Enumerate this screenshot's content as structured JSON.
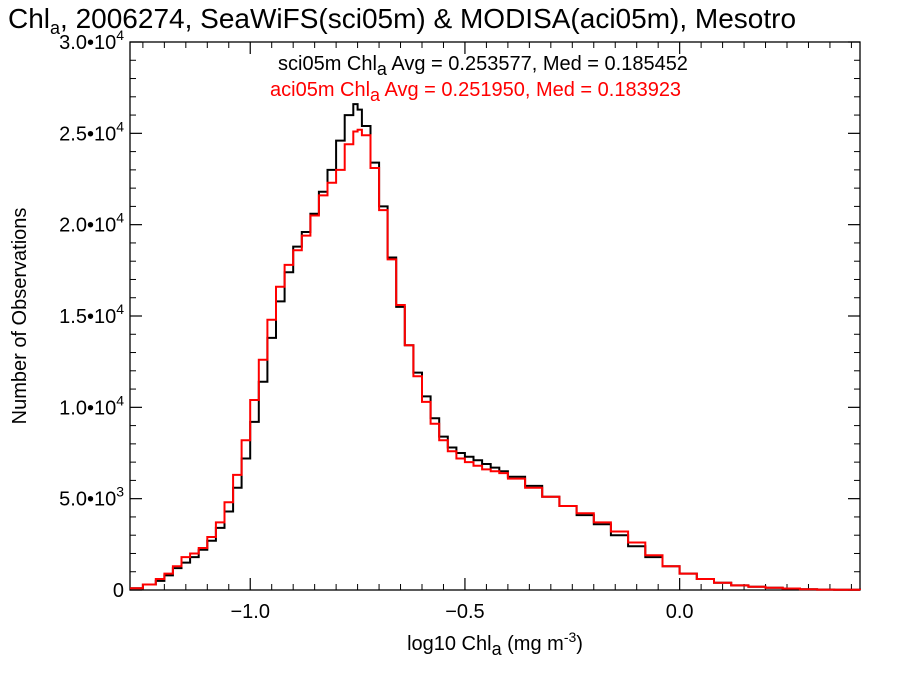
{
  "chart_data": {
    "type": "line",
    "step": true,
    "title": {
      "pre": "Chl",
      "sub": "a",
      "post": ", 2006274, SeaWiFS(sci05m) & MODISA(aci05m), Mesotro"
    },
    "xlabel": {
      "pre": "log10 Chl",
      "sub": "a",
      "mid": " (mg m",
      "sup": "-3",
      "post": ")"
    },
    "ylabel": "Number of Observations",
    "xlim": [
      -1.28,
      0.42
    ],
    "ylim": [
      0,
      30000
    ],
    "x_ticks": [
      {
        "value": -1.0,
        "label": "−1.0"
      },
      {
        "value": -0.5,
        "label": "−0.5"
      },
      {
        "value": 0.0,
        "label": "0.0"
      }
    ],
    "y_ticks": [
      {
        "value": 0,
        "label": "0",
        "exp": ""
      },
      {
        "value": 5000,
        "label": "5.0•10",
        "exp": "3"
      },
      {
        "value": 10000,
        "label": "1.0•10",
        "exp": "4"
      },
      {
        "value": 15000,
        "label": "1.5•10",
        "exp": "4"
      },
      {
        "value": 20000,
        "label": "2.0•10",
        "exp": "4"
      },
      {
        "value": 25000,
        "label": "2.5•10",
        "exp": "4"
      },
      {
        "value": 30000,
        "label": "3.0•10",
        "exp": "4"
      }
    ],
    "series": [
      {
        "name": "sci05m",
        "color": "#000000",
        "stat": {
          "pre": "sci05m Chl",
          "sub": "a",
          "post": " Avg = 0.253577, Med = 0.185452"
        },
        "x": [
          -1.28,
          -1.25,
          -1.22,
          -1.2,
          -1.18,
          -1.16,
          -1.14,
          -1.12,
          -1.1,
          -1.08,
          -1.06,
          -1.04,
          -1.02,
          -1.0,
          -0.98,
          -0.96,
          -0.94,
          -0.92,
          -0.9,
          -0.88,
          -0.86,
          -0.84,
          -0.82,
          -0.8,
          -0.78,
          -0.76,
          -0.75,
          -0.74,
          -0.72,
          -0.7,
          -0.68,
          -0.66,
          -0.64,
          -0.62,
          -0.6,
          -0.58,
          -0.56,
          -0.54,
          -0.52,
          -0.5,
          -0.48,
          -0.46,
          -0.44,
          -0.42,
          -0.4,
          -0.36,
          -0.32,
          -0.28,
          -0.24,
          -0.2,
          -0.16,
          -0.12,
          -0.08,
          -0.04,
          0.0,
          0.04,
          0.08,
          0.12,
          0.16,
          0.2,
          0.24,
          0.28,
          0.32,
          0.36,
          0.42
        ],
        "y": [
          100,
          300,
          500,
          800,
          1200,
          1500,
          1800,
          2200,
          2700,
          3400,
          4300,
          5600,
          7200,
          9200,
          11400,
          13800,
          15800,
          17400,
          18800,
          19600,
          20600,
          21800,
          23000,
          24600,
          26000,
          26600,
          26300,
          25400,
          23400,
          21000,
          18200,
          15500,
          13400,
          11900,
          10600,
          9400,
          8400,
          7800,
          7500,
          7300,
          7100,
          6900,
          6700,
          6500,
          6200,
          5700,
          5100,
          4600,
          4100,
          3600,
          3000,
          2400,
          1800,
          1300,
          900,
          600,
          400,
          250,
          180,
          120,
          80,
          40,
          20,
          10,
          0
        ]
      },
      {
        "name": "aci05m",
        "color": "#ff0000",
        "stat": {
          "pre": "aci05m Chl",
          "sub": "a",
          "post": " Avg = 0.251950, Med = 0.183923"
        },
        "x": [
          -1.28,
          -1.25,
          -1.22,
          -1.2,
          -1.18,
          -1.16,
          -1.14,
          -1.12,
          -1.1,
          -1.08,
          -1.06,
          -1.04,
          -1.02,
          -1.0,
          -0.98,
          -0.96,
          -0.94,
          -0.92,
          -0.9,
          -0.88,
          -0.86,
          -0.84,
          -0.82,
          -0.8,
          -0.78,
          -0.76,
          -0.75,
          -0.74,
          -0.72,
          -0.7,
          -0.68,
          -0.66,
          -0.64,
          -0.62,
          -0.6,
          -0.58,
          -0.56,
          -0.54,
          -0.52,
          -0.5,
          -0.48,
          -0.46,
          -0.44,
          -0.42,
          -0.4,
          -0.36,
          -0.32,
          -0.28,
          -0.24,
          -0.2,
          -0.16,
          -0.12,
          -0.08,
          -0.04,
          0.0,
          0.04,
          0.08,
          0.12,
          0.16,
          0.2,
          0.24,
          0.28,
          0.32,
          0.36,
          0.42
        ],
        "y": [
          100,
          300,
          600,
          900,
          1300,
          1800,
          2000,
          2300,
          2900,
          3700,
          4800,
          6300,
          8200,
          10400,
          12600,
          14800,
          16600,
          17800,
          18600,
          19400,
          20500,
          21600,
          22300,
          23000,
          24400,
          25100,
          25200,
          24900,
          23100,
          20800,
          18100,
          15600,
          13400,
          11700,
          10300,
          9100,
          8200,
          7600,
          7200,
          7000,
          6800,
          6600,
          6500,
          6400,
          6100,
          5600,
          5100,
          4600,
          4200,
          3700,
          3200,
          2600,
          1900,
          1300,
          900,
          600,
          400,
          250,
          180,
          120,
          80,
          40,
          20,
          10,
          0
        ]
      }
    ]
  }
}
